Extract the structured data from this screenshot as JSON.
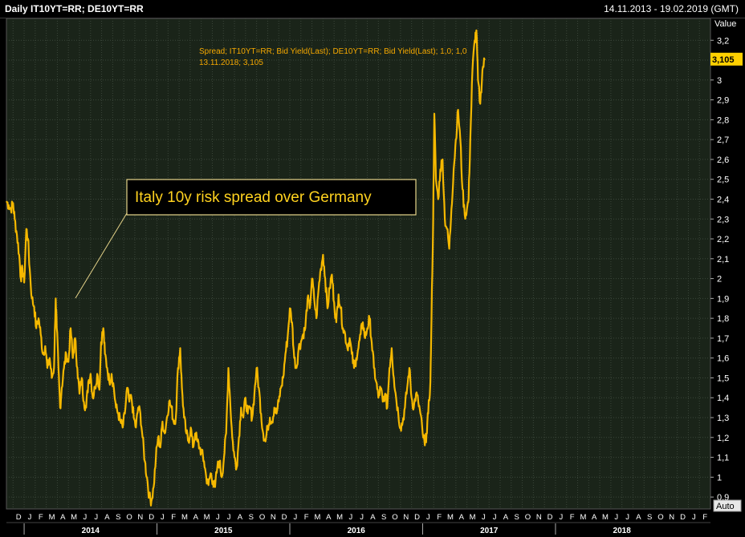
{
  "header": {
    "title": "Daily IT10YT=RR; DE10YT=RR",
    "date_range": "14.11.2013 - 19.02.2019 (GMT)"
  },
  "colors": {
    "background": "#1a2419",
    "grid": "#3b463a",
    "line": "#f5b800",
    "text": "#ffffff"
  },
  "chart_data": {
    "type": "line",
    "title": "Daily IT10YT=RR; DE10YT=RR",
    "legend": [
      "Spread; IT10YT=RR; Bid Yield(Last); DE10YT=RR; Bid Yield(Last);  1,0; 1,0",
      "13.11.2018; 3,105"
    ],
    "annotation": "Italy 10y risk spread over Germany",
    "y_axis_title": "Value",
    "ylim": [
      0.84,
      3.31
    ],
    "yticks": [
      "0,9",
      "1",
      "1,1",
      "1,2",
      "1,3",
      "1,4",
      "1,5",
      "1,6",
      "1,7",
      "1,8",
      "1,9",
      "2",
      "2,1",
      "2,2",
      "2,3",
      "2,4",
      "2,5",
      "2,6",
      "2,7",
      "2,8",
      "2,9",
      "3",
      "3,1",
      "3,2"
    ],
    "ytick_values": [
      0.9,
      1.0,
      1.1,
      1.2,
      1.3,
      1.4,
      1.5,
      1.6,
      1.7,
      1.8,
      1.9,
      2.0,
      2.1,
      2.2,
      2.3,
      2.4,
      2.5,
      2.6,
      2.7,
      2.8,
      2.9,
      3.0,
      3.1,
      3.2
    ],
    "last_value_label": "3,105",
    "last_value": 3.105,
    "auto_button": "Auto",
    "x_month_labels": [
      "D",
      "J",
      "F",
      "M",
      "A",
      "M",
      "J",
      "J",
      "A",
      "S",
      "O",
      "N",
      "D",
      "J",
      "F",
      "M",
      "A",
      "M",
      "J",
      "J",
      "A",
      "S",
      "O",
      "N",
      "D",
      "J",
      "F",
      "M",
      "A",
      "M",
      "J",
      "J",
      "A",
      "S",
      "O",
      "N",
      "D",
      "J",
      "F",
      "M",
      "A",
      "M",
      "J",
      "J",
      "A",
      "S",
      "O",
      "N",
      "D",
      "J",
      "F",
      "M",
      "A",
      "M",
      "J",
      "J",
      "A",
      "S",
      "O",
      "N",
      "D",
      "J",
      "F"
    ],
    "x_years": [
      "2014",
      "2015",
      "2016",
      "2017",
      "2018"
    ],
    "x_range": [
      0,
      63
    ],
    "x_units": "months since 1 Dec 2013",
    "series": [
      {
        "name": "Spread",
        "points": [
          [
            -0.6,
            2.39
          ],
          [
            -0.4,
            2.37
          ],
          [
            -0.2,
            2.35
          ],
          [
            0.0,
            2.38
          ],
          [
            0.15,
            2.3
          ],
          [
            0.35,
            2.22
          ],
          [
            0.55,
            2.12
          ],
          [
            0.7,
            2.0
          ],
          [
            0.85,
            2.05
          ],
          [
            1.0,
            1.98
          ],
          [
            1.2,
            2.25
          ],
          [
            1.35,
            2.2
          ],
          [
            1.5,
            2.05
          ],
          [
            1.7,
            1.9
          ],
          [
            1.9,
            1.86
          ],
          [
            2.1,
            1.75
          ],
          [
            2.3,
            1.8
          ],
          [
            2.5,
            1.72
          ],
          [
            2.7,
            1.62
          ],
          [
            2.9,
            1.66
          ],
          [
            3.1,
            1.55
          ],
          [
            3.3,
            1.6
          ],
          [
            3.5,
            1.5
          ],
          [
            3.7,
            1.55
          ],
          [
            3.85,
            1.9
          ],
          [
            3.95,
            1.75
          ],
          [
            4.1,
            1.55
          ],
          [
            4.25,
            1.35
          ],
          [
            4.4,
            1.45
          ],
          [
            4.6,
            1.55
          ],
          [
            4.8,
            1.62
          ],
          [
            5.0,
            1.58
          ],
          [
            5.2,
            1.75
          ],
          [
            5.4,
            1.6
          ],
          [
            5.6,
            1.7
          ],
          [
            5.8,
            1.55
          ],
          [
            6.0,
            1.42
          ],
          [
            6.2,
            1.5
          ],
          [
            6.4,
            1.38
          ],
          [
            6.6,
            1.35
          ],
          [
            6.8,
            1.48
          ],
          [
            7.0,
            1.52
          ],
          [
            7.2,
            1.4
          ],
          [
            7.4,
            1.45
          ],
          [
            7.6,
            1.52
          ],
          [
            7.8,
            1.44
          ],
          [
            7.95,
            1.68
          ],
          [
            8.15,
            1.75
          ],
          [
            8.3,
            1.62
          ],
          [
            8.5,
            1.55
          ],
          [
            8.7,
            1.48
          ],
          [
            8.9,
            1.52
          ],
          [
            9.1,
            1.45
          ],
          [
            9.3,
            1.35
          ],
          [
            9.5,
            1.32
          ],
          [
            9.7,
            1.28
          ],
          [
            9.9,
            1.25
          ],
          [
            10.1,
            1.32
          ],
          [
            10.3,
            1.45
          ],
          [
            10.5,
            1.38
          ],
          [
            10.7,
            1.4
          ],
          [
            10.9,
            1.3
          ],
          [
            11.1,
            1.25
          ],
          [
            11.3,
            1.35
          ],
          [
            11.5,
            1.32
          ],
          [
            11.7,
            1.2
          ],
          [
            11.9,
            1.08
          ],
          [
            12.1,
            1.0
          ],
          [
            12.3,
            0.9
          ],
          [
            12.5,
            0.88
          ],
          [
            12.7,
            0.95
          ],
          [
            12.9,
            1.1
          ],
          [
            13.1,
            1.2
          ],
          [
            13.3,
            1.15
          ],
          [
            13.5,
            1.28
          ],
          [
            13.7,
            1.22
          ],
          [
            13.9,
            1.3
          ],
          [
            14.1,
            1.38
          ],
          [
            14.3,
            1.35
          ],
          [
            14.5,
            1.28
          ],
          [
            14.7,
            1.3
          ],
          [
            14.9,
            1.55
          ],
          [
            15.1,
            1.65
          ],
          [
            15.25,
            1.45
          ],
          [
            15.45,
            1.3
          ],
          [
            15.65,
            1.22
          ],
          [
            15.85,
            1.18
          ],
          [
            16.05,
            1.25
          ],
          [
            16.25,
            1.15
          ],
          [
            16.45,
            1.22
          ],
          [
            16.65,
            1.18
          ],
          [
            16.85,
            1.15
          ],
          [
            17.05,
            1.12
          ],
          [
            17.25,
            1.08
          ],
          [
            17.45,
            1.0
          ],
          [
            17.65,
            0.96
          ],
          [
            17.85,
            1.02
          ],
          [
            18.05,
            0.98
          ],
          [
            18.25,
            0.95
          ],
          [
            18.45,
            1.05
          ],
          [
            18.65,
            1.08
          ],
          [
            18.85,
            1.0
          ],
          [
            19.05,
            1.1
          ],
          [
            19.25,
            1.22
          ],
          [
            19.45,
            1.55
          ],
          [
            19.6,
            1.4
          ],
          [
            19.8,
            1.2
          ],
          [
            20.0,
            1.1
          ],
          [
            20.2,
            1.05
          ],
          [
            20.4,
            1.2
          ],
          [
            20.6,
            1.35
          ],
          [
            20.8,
            1.3
          ],
          [
            21.0,
            1.4
          ],
          [
            21.2,
            1.32
          ],
          [
            21.4,
            1.35
          ],
          [
            21.6,
            1.3
          ],
          [
            21.8,
            1.42
          ],
          [
            22.0,
            1.55
          ],
          [
            22.2,
            1.45
          ],
          [
            22.4,
            1.32
          ],
          [
            22.6,
            1.22
          ],
          [
            22.8,
            1.18
          ],
          [
            23.0,
            1.25
          ],
          [
            23.2,
            1.3
          ],
          [
            23.4,
            1.28
          ],
          [
            23.6,
            1.35
          ],
          [
            23.8,
            1.32
          ],
          [
            24.0,
            1.38
          ],
          [
            24.2,
            1.45
          ],
          [
            24.4,
            1.5
          ],
          [
            24.6,
            1.62
          ],
          [
            24.8,
            1.7
          ],
          [
            25.0,
            1.85
          ],
          [
            25.2,
            1.78
          ],
          [
            25.4,
            1.6
          ],
          [
            25.6,
            1.55
          ],
          [
            25.8,
            1.65
          ],
          [
            26.0,
            1.68
          ],
          [
            26.2,
            1.72
          ],
          [
            26.4,
            1.75
          ],
          [
            26.6,
            1.9
          ],
          [
            26.8,
            1.85
          ],
          [
            27.0,
            2.0
          ],
          [
            27.2,
            1.9
          ],
          [
            27.4,
            1.8
          ],
          [
            27.6,
            1.95
          ],
          [
            27.8,
            2.05
          ],
          [
            28.0,
            2.12
          ],
          [
            28.2,
            2.0
          ],
          [
            28.4,
            1.85
          ],
          [
            28.6,
            1.95
          ],
          [
            28.8,
            2.02
          ],
          [
            29.0,
            1.88
          ],
          [
            29.2,
            1.78
          ],
          [
            29.4,
            1.92
          ],
          [
            29.6,
            1.85
          ],
          [
            29.8,
            1.75
          ],
          [
            30.0,
            1.72
          ],
          [
            30.2,
            1.65
          ],
          [
            30.4,
            1.7
          ],
          [
            30.6,
            1.62
          ],
          [
            30.8,
            1.55
          ],
          [
            31.0,
            1.6
          ],
          [
            31.2,
            1.65
          ],
          [
            31.4,
            1.72
          ],
          [
            31.6,
            1.78
          ],
          [
            31.8,
            1.7
          ],
          [
            32.0,
            1.75
          ],
          [
            32.2,
            1.8
          ],
          [
            32.4,
            1.68
          ],
          [
            32.6,
            1.55
          ],
          [
            32.8,
            1.48
          ],
          [
            33.0,
            1.4
          ],
          [
            33.2,
            1.45
          ],
          [
            33.4,
            1.38
          ],
          [
            33.6,
            1.42
          ],
          [
            33.8,
            1.35
          ],
          [
            34.0,
            1.55
          ],
          [
            34.2,
            1.65
          ],
          [
            34.4,
            1.5
          ],
          [
            34.6,
            1.4
          ],
          [
            34.8,
            1.32
          ],
          [
            35.0,
            1.25
          ],
          [
            35.2,
            1.28
          ],
          [
            35.4,
            1.35
          ],
          [
            35.6,
            1.45
          ],
          [
            35.8,
            1.55
          ],
          [
            36.0,
            1.4
          ],
          [
            36.2,
            1.35
          ],
          [
            36.4,
            1.42
          ],
          [
            36.6,
            1.38
          ],
          [
            36.8,
            1.32
          ],
          [
            37.0,
            1.22
          ],
          [
            37.2,
            1.16
          ],
          [
            37.35,
            1.22
          ],
          [
            37.5,
            1.32
          ],
          [
            37.7,
            1.48
          ],
          [
            37.8,
            1.8
          ],
          [
            37.95,
            2.3
          ],
          [
            38.05,
            2.83
          ],
          [
            38.2,
            2.5
          ],
          [
            38.4,
            2.4
          ],
          [
            38.6,
            2.55
          ],
          [
            38.8,
            2.6
          ],
          [
            39.0,
            2.3
          ],
          [
            39.2,
            2.25
          ],
          [
            39.4,
            2.15
          ],
          [
            39.6,
            2.35
          ],
          [
            39.8,
            2.55
          ],
          [
            40.0,
            2.7
          ],
          [
            40.2,
            2.85
          ],
          [
            40.4,
            2.7
          ],
          [
            40.6,
            2.45
          ],
          [
            40.8,
            2.32
          ],
          [
            41.0,
            2.35
          ],
          [
            41.15,
            2.4
          ],
          [
            41.3,
            2.7
          ],
          [
            41.5,
            3.05
          ],
          [
            41.7,
            3.2
          ],
          [
            41.85,
            3.25
          ],
          [
            42.0,
            3.0
          ],
          [
            42.2,
            2.88
          ],
          [
            42.4,
            3.05
          ],
          [
            42.6,
            3.1
          ]
        ]
      }
    ]
  }
}
